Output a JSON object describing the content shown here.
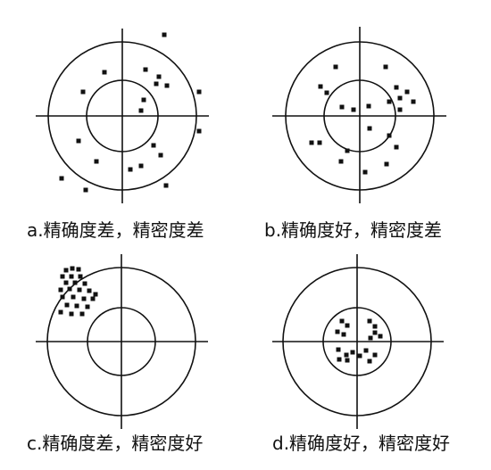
{
  "panels": [
    {
      "id": "a",
      "caption": "a.精确度差，精密度差",
      "dots": [
        [
          184,
          39
        ],
        [
          117,
          81
        ],
        [
          163,
          78
        ],
        [
          178,
          86
        ],
        [
          175,
          94
        ],
        [
          187,
          96
        ],
        [
          93,
          103
        ],
        [
          223,
          103
        ],
        [
          161,
          112
        ],
        [
          158,
          124
        ],
        [
          223,
          147
        ],
        [
          88,
          158
        ],
        [
          172,
          163
        ],
        [
          180,
          174
        ],
        [
          108,
          181
        ],
        [
          158,
          186
        ],
        [
          146,
          190
        ],
        [
          69,
          200
        ],
        [
          186,
          208
        ],
        [
          96,
          213
        ]
      ]
    },
    {
      "id": "b",
      "caption": "b.精确度好，精密度差",
      "dots": [
        [
          376,
          75
        ],
        [
          432,
          75
        ],
        [
          359,
          97
        ],
        [
          444,
          98
        ],
        [
          366,
          104
        ],
        [
          456,
          103
        ],
        [
          448,
          110
        ],
        [
          436,
          114
        ],
        [
          463,
          114
        ],
        [
          413,
          119
        ],
        [
          383,
          120
        ],
        [
          396,
          123
        ],
        [
          448,
          123
        ],
        [
          414,
          144
        ],
        [
          436,
          152
        ],
        [
          349,
          160
        ],
        [
          358,
          160
        ],
        [
          444,
          165
        ],
        [
          389,
          169
        ],
        [
          382,
          181
        ],
        [
          433,
          184
        ],
        [
          409,
          193
        ]
      ]
    },
    {
      "id": "c",
      "caption": "c.精确度差，精密度好",
      "dots": [
        [
          74,
          303
        ],
        [
          81,
          301
        ],
        [
          88,
          302
        ],
        [
          70,
          310
        ],
        [
          80,
          310
        ],
        [
          90,
          310
        ],
        [
          74,
          317
        ],
        [
          84,
          317
        ],
        [
          95,
          318
        ],
        [
          68,
          325
        ],
        [
          78,
          324
        ],
        [
          89,
          325
        ],
        [
          100,
          326
        ],
        [
          107,
          330
        ],
        [
          70,
          333
        ],
        [
          82,
          333
        ],
        [
          94,
          335
        ],
        [
          104,
          335
        ],
        [
          75,
          342
        ],
        [
          86,
          343
        ],
        [
          98,
          344
        ],
        [
          68,
          350
        ],
        [
          80,
          352
        ],
        [
          92,
          352
        ]
      ]
    },
    {
      "id": "d",
      "caption": "d.精确度好，精密度好",
      "dots": [
        [
          383,
          360
        ],
        [
          389,
          365
        ],
        [
          414,
          360
        ],
        [
          420,
          366
        ],
        [
          378,
          372
        ],
        [
          385,
          375
        ],
        [
          420,
          373
        ],
        [
          415,
          379
        ],
        [
          426,
          377
        ],
        [
          379,
          392
        ],
        [
          388,
          398
        ],
        [
          395,
          395
        ],
        [
          410,
          393
        ],
        [
          420,
          398
        ],
        [
          403,
          399
        ],
        [
          380,
          403
        ],
        [
          389,
          404
        ],
        [
          414,
          405
        ]
      ]
    }
  ]
}
